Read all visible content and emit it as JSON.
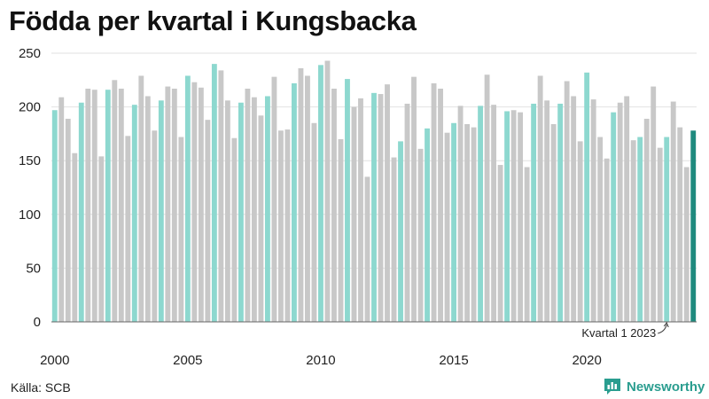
{
  "title": "Födda per kvartal i Kungsbacka",
  "source": "Källa: SCB",
  "brand": "Newsworthy",
  "chart_data": {
    "type": "bar",
    "title": "Födda per kvartal i Kungsbacka",
    "xlabel": "",
    "ylabel": "",
    "ylim": [
      0,
      250
    ],
    "yticks": [
      0,
      50,
      100,
      150,
      200,
      250
    ],
    "xtick_labels": [
      "2000",
      "2005",
      "2010",
      "2015",
      "2020"
    ],
    "start_year": 2000,
    "grid": true,
    "annotation": "Kvartal 1 2023",
    "colors": {
      "q1": "#8dd8cf",
      "other": "#c8c8c8",
      "latest": "#1f8a7e"
    },
    "values": [
      197,
      209,
      189,
      157,
      204,
      217,
      216,
      154,
      216,
      225,
      217,
      173,
      202,
      229,
      210,
      178,
      206,
      219,
      217,
      172,
      229,
      223,
      218,
      188,
      240,
      234,
      206,
      171,
      204,
      217,
      209,
      192,
      210,
      228,
      178,
      179,
      222,
      236,
      229,
      185,
      239,
      243,
      217,
      170,
      226,
      200,
      208,
      135,
      213,
      212,
      221,
      153,
      168,
      203,
      228,
      161,
      180,
      222,
      217,
      176,
      185,
      201,
      184,
      181,
      201,
      230,
      202,
      146,
      196,
      197,
      195,
      144,
      203,
      229,
      206,
      184,
      203,
      224,
      210,
      168,
      232,
      207,
      172,
      152,
      195,
      204,
      210,
      169,
      172,
      189,
      219,
      162,
      172,
      205,
      181,
      144,
      178
    ]
  }
}
